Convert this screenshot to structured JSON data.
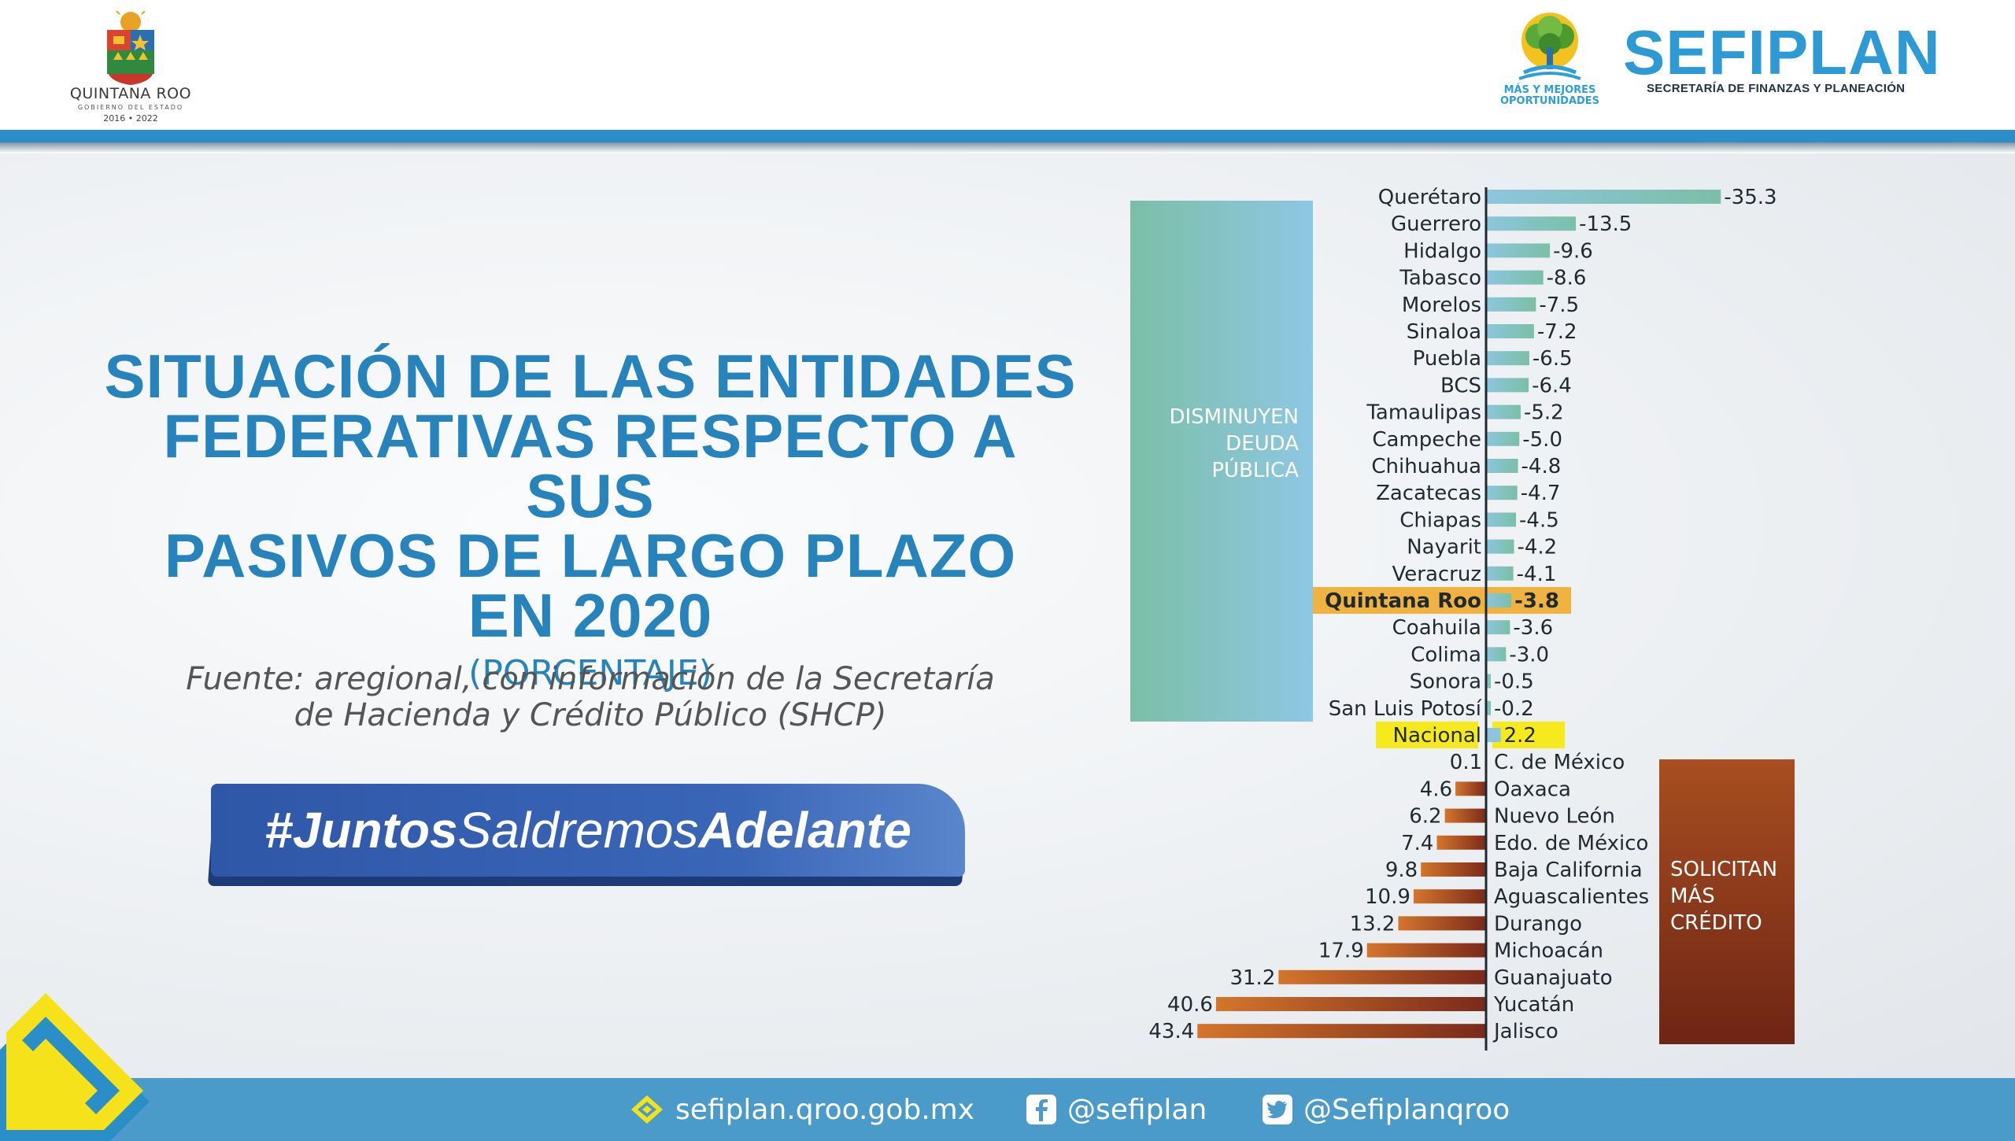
{
  "header": {
    "left_logo": {
      "name": "QUINTANA ROO",
      "sub": "GOBIERNO DEL ESTADO",
      "years": "2016 • 2022"
    },
    "center_logo": {
      "line1": "MÁS Y MEJORES",
      "line2": "OPORTUNIDADES"
    },
    "brand": {
      "title": "SEFIPLAN",
      "subtitle": "SECRETARÍA DE FINANZAS Y PLANEACIÓN"
    }
  },
  "main": {
    "title_lines": [
      "SITUACIÓN DE LAS ENTIDADES",
      "FEDERATIVAS RESPECTO A SUS",
      "PASIVOS DE LARGO PLAZO",
      "EN 2020"
    ],
    "unit": "(PORCENTAJE)",
    "source_line1": "Fuente: aregional, con información de la Secretaría",
    "source_line2": "de Hacienda y Crédito Público (SHCP)",
    "hashtag": {
      "part1": "#Juntos",
      "part2": "Saldremos",
      "part3": "Adelante"
    }
  },
  "footer": {
    "website": "sefiplan.qroo.gob.mx",
    "facebook": "@sefiplan",
    "twitter": "@Sefiplanqroo"
  },
  "colors": {
    "title_blue": "#2683bb",
    "header_stripe": "#2a8fc9",
    "footer_blue": "#4a9bc9",
    "decrease_bar": "#8cc6de",
    "decrease_bar_start": "#7bbfa7",
    "increase_bar_start": "#d4752c",
    "increase_bar_end": "#7a2a1a",
    "highlight_qroo": "#f0b341",
    "highlight_nacional": "#f6ea1e"
  },
  "chart_data": {
    "type": "bar",
    "orientation": "horizontal",
    "unit": "%",
    "group_labels": {
      "decrease": [
        "DISMINUYEN",
        "DEUDA",
        "PÚBLICA"
      ],
      "increase": [
        "SOLICITAN",
        "MÁS",
        "CRÉDITO"
      ]
    },
    "categories": [
      "Querétaro",
      "Guerrero",
      "Hidalgo",
      "Tabasco",
      "Morelos",
      "Sinaloa",
      "Puebla",
      "BCS",
      "Tamaulipas",
      "Campeche",
      "Chihuahua",
      "Zacatecas",
      "Chiapas",
      "Nayarit",
      "Veracruz",
      "Quintana Roo",
      "Coahuila",
      "Colima",
      "Sonora",
      "San Luis Potosí",
      "Nacional",
      "C. de México",
      "Oaxaca",
      "Nuevo León",
      "Edo. de México",
      "Baja California",
      "Aguascalientes",
      "Durango",
      "Michoacán",
      "Guanajuato",
      "Yucatán",
      "Jalisco"
    ],
    "values": [
      -35.3,
      -13.5,
      -9.6,
      -8.6,
      -7.5,
      -7.2,
      -6.5,
      -6.4,
      -5.2,
      -5.0,
      -4.8,
      -4.7,
      -4.5,
      -4.2,
      -4.1,
      -3.8,
      -3.6,
      -3.0,
      -0.5,
      -0.2,
      2.2,
      0.1,
      4.6,
      6.2,
      7.4,
      9.8,
      10.9,
      13.2,
      17.9,
      31.2,
      40.6,
      43.4
    ],
    "value_labels": [
      "-35.3",
      "-13.5",
      "-9.6",
      "-8.6",
      "-7.5",
      "-7.2",
      "-6.5",
      "-6.4",
      "-5.2",
      "-5.0",
      "-4.8",
      "-4.7",
      "-4.5",
      "-4.2",
      "-4.1",
      "-3.8",
      "-3.6",
      "-3.0",
      "-0.5",
      "-0.2",
      "2.2",
      "0.1",
      "4.6",
      "6.2",
      "7.4",
      "9.8",
      "10.9",
      "13.2",
      "17.9",
      "31.2",
      "40.6",
      "43.4"
    ],
    "highlighted": [
      "Quintana Roo",
      "Nacional"
    ]
  }
}
